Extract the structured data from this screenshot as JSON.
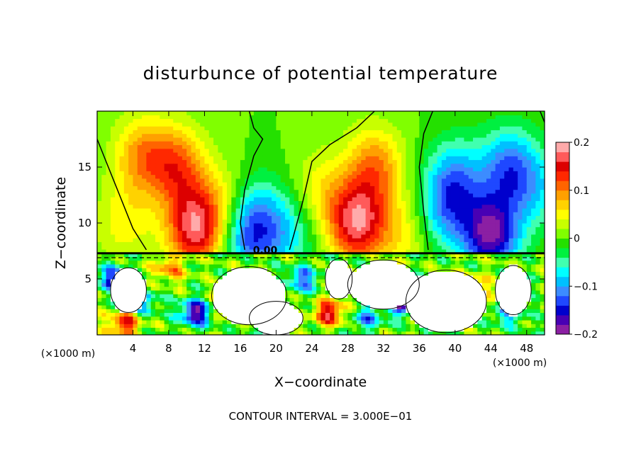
{
  "chart_data": {
    "type": "heatmap",
    "title": "disturbunce of potential temperature",
    "xlabel": "X−coordinate",
    "ylabel": "Z−coordinate",
    "x_unit_left": "(×1000 m)",
    "x_unit_right": "(×1000 m)",
    "footer": "CONTOUR INTERVAL = 3.000E−01",
    "contour_label": "0.00",
    "xlim": [
      0,
      50
    ],
    "ylim": [
      0,
      20
    ],
    "x_ticks": [
      {
        "v": 4,
        "label": "4"
      },
      {
        "v": 8,
        "label": "8"
      },
      {
        "v": 12,
        "label": "12"
      },
      {
        "v": 16,
        "label": "16"
      },
      {
        "v": 20,
        "label": "20"
      },
      {
        "v": 24,
        "label": "24"
      },
      {
        "v": 28,
        "label": "28"
      },
      {
        "v": 32,
        "label": "32"
      },
      {
        "v": 36,
        "label": "36"
      },
      {
        "v": 40,
        "label": "40"
      },
      {
        "v": 44,
        "label": "44"
      },
      {
        "v": 48,
        "label": "48"
      }
    ],
    "y_ticks": [
      {
        "v": 5,
        "label": "5"
      },
      {
        "v": 10,
        "label": "10"
      },
      {
        "v": 15,
        "label": "15"
      }
    ],
    "colorbar": {
      "min": -0.2,
      "max": 0.2,
      "ticks": [
        {
          "v": 0.2,
          "label": "0.2"
        },
        {
          "v": 0.1,
          "label": "0.1"
        },
        {
          "v": 0,
          "label": "0"
        },
        {
          "v": -0.1,
          "label": "−0.1"
        },
        {
          "v": -0.2,
          "label": "−0.2"
        }
      ],
      "colors": [
        "#8b1fa3",
        "#4800b4",
        "#0000cd",
        "#1f48ff",
        "#3c8cff",
        "#00c0ff",
        "#00ffff",
        "#40ffb0",
        "#00f040",
        "#24e000",
        "#80ff00",
        "#c8ff00",
        "#ffff00",
        "#ffd200",
        "#ffa000",
        "#ff6400",
        "#ff2800",
        "#dc0000",
        "#ff5a5a",
        "#ffaaaa"
      ]
    },
    "interface_height": 7.3,
    "upper_features": [
      {
        "x": 9,
        "z": 15,
        "v": 0.11
      },
      {
        "x": 11,
        "z": 9.5,
        "v": 0.17
      },
      {
        "x": 5,
        "z": 16,
        "v": 0.09
      },
      {
        "x": 3,
        "z": 10,
        "v": 0.05
      },
      {
        "x": 14,
        "z": 12,
        "v": 0.04
      },
      {
        "x": 18,
        "z": 11,
        "v": -0.06
      },
      {
        "x": 17,
        "z": 8.5,
        "v": -0.1
      },
      {
        "x": 21.5,
        "z": 9,
        "v": -0.06
      },
      {
        "x": 25,
        "z": 13,
        "v": 0.05
      },
      {
        "x": 29,
        "z": 10,
        "v": 0.17
      },
      {
        "x": 31,
        "z": 15,
        "v": 0.1
      },
      {
        "x": 34,
        "z": 9,
        "v": 0.05
      },
      {
        "x": 40,
        "z": 14,
        "v": -0.09
      },
      {
        "x": 39,
        "z": 11,
        "v": -0.08
      },
      {
        "x": 44,
        "z": 9,
        "v": -0.18
      },
      {
        "x": 46,
        "z": 15,
        "v": -0.11
      },
      {
        "x": 49,
        "z": 13,
        "v": -0.06
      }
    ],
    "lower_features": [
      {
        "x": 2,
        "z": 5,
        "v": -0.15
      },
      {
        "x": 5,
        "z": 3,
        "v": -0.1
      },
      {
        "x": 3,
        "z": 1,
        "v": 0.15
      },
      {
        "x": 8,
        "z": 6,
        "v": 0.1
      },
      {
        "x": 11,
        "z": 2,
        "v": -0.18
      },
      {
        "x": 15,
        "z": 3,
        "v": 0.12
      },
      {
        "x": 23,
        "z": 5,
        "v": -0.12
      },
      {
        "x": 26,
        "z": 2,
        "v": 0.16
      },
      {
        "x": 30,
        "z": 1.5,
        "v": -0.1
      },
      {
        "x": 34,
        "z": 3,
        "v": -0.18
      },
      {
        "x": 42,
        "z": 4,
        "v": 0.12
      },
      {
        "x": 46,
        "z": 2,
        "v": -0.1
      }
    ],
    "lower_neutral": [
      {
        "x": 17,
        "z": 3.5,
        "rx": 4.2,
        "rz": 2.6
      },
      {
        "x": 20,
        "z": 1.5,
        "rx": 3,
        "rz": 1.5
      },
      {
        "x": 3.5,
        "z": 4,
        "rx": 2,
        "rz": 2
      },
      {
        "x": 32,
        "z": 4.5,
        "rx": 4,
        "rz": 2.2
      },
      {
        "x": 39,
        "z": 3,
        "rx": 4.5,
        "rz": 2.8
      },
      {
        "x": 46.5,
        "z": 4,
        "rx": 2,
        "rz": 2.2
      },
      {
        "x": 27,
        "z": 5,
        "rx": 1.5,
        "rz": 1.8
      }
    ]
  }
}
